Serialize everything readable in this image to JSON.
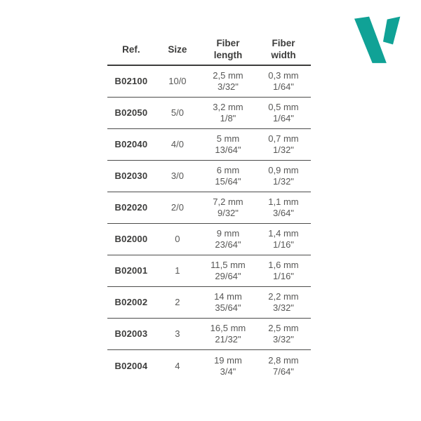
{
  "logo": {
    "icon": "v-brand-mark"
  },
  "table": {
    "columns": [
      {
        "line1": "Ref.",
        "line2": ""
      },
      {
        "line1": "Size",
        "line2": ""
      },
      {
        "line1": "Fiber",
        "line2": "length"
      },
      {
        "line1": "Fiber",
        "line2": "width"
      }
    ],
    "rows": [
      {
        "ref": "B02100",
        "size": "10/0",
        "length_mm": "2,5 mm",
        "length_in": "3/32\"",
        "width_mm": "0,3 mm",
        "width_in": "1/64\""
      },
      {
        "ref": "B02050",
        "size": "5/0",
        "length_mm": "3,2 mm",
        "length_in": "1/8\"",
        "width_mm": "0,5 mm",
        "width_in": "1/64\""
      },
      {
        "ref": "B02040",
        "size": "4/0",
        "length_mm": "5 mm",
        "length_in": "13/64\"",
        "width_mm": "0,7 mm",
        "width_in": "1/32\""
      },
      {
        "ref": "B02030",
        "size": "3/0",
        "length_mm": "6 mm",
        "length_in": "15/64\"",
        "width_mm": "0,9 mm",
        "width_in": "1/32\""
      },
      {
        "ref": "B02020",
        "size": "2/0",
        "length_mm": "7,2 mm",
        "length_in": "9/32\"",
        "width_mm": "1,1 mm",
        "width_in": "3/64\""
      },
      {
        "ref": "B02000",
        "size": "0",
        "length_mm": "9 mm",
        "length_in": "23/64\"",
        "width_mm": "1,4 mm",
        "width_in": "1/16\""
      },
      {
        "ref": "B02001",
        "size": "1",
        "length_mm": "11,5 mm",
        "length_in": "29/64\"",
        "width_mm": "1,6 mm",
        "width_in": "1/16\""
      },
      {
        "ref": "B02002",
        "size": "2",
        "length_mm": "14 mm",
        "length_in": "35/64\"",
        "width_mm": "2,2 mm",
        "width_in": "3/32\""
      },
      {
        "ref": "B02003",
        "size": "3",
        "length_mm": "16,5 mm",
        "length_in": "21/32\"",
        "width_mm": "2,5 mm",
        "width_in": "3/32\""
      },
      {
        "ref": "B02004",
        "size": "4",
        "length_mm": "19 mm",
        "length_in": "3/4\"",
        "width_mm": "2,8 mm",
        "width_in": "7/64\""
      }
    ]
  },
  "colors": {
    "brand_teal": "#10A296",
    "text_dark": "#3D3D3C",
    "text_gray": "#575756",
    "header_rule": "#3D3D3C",
    "row_rule": "#4C4C4B"
  }
}
